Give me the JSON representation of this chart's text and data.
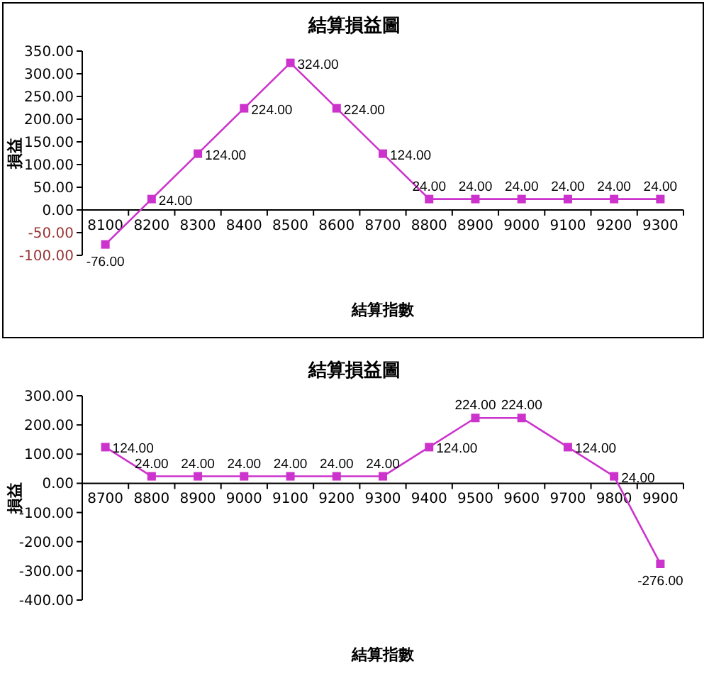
{
  "chart_data": [
    {
      "type": "line",
      "title": "結算損益圖",
      "xlabel": "結算指數",
      "ylabel": "損益",
      "categories": [
        "8100",
        "8200",
        "8300",
        "8400",
        "8500",
        "8600",
        "8700",
        "8800",
        "8900",
        "9000",
        "9100",
        "9200",
        "9300"
      ],
      "series": [
        {
          "color": "#cc33cc",
          "values": [
            -76,
            24,
            124,
            224,
            324,
            224,
            124,
            24,
            24,
            24,
            24,
            24,
            24
          ],
          "value_labels": [
            "-76.00",
            "24.00",
            "124.00",
            "224.00",
            "324.00",
            "224.00",
            "124.00",
            "24.00",
            "24.00",
            "24.00",
            "24.00",
            "24.00",
            "24.00"
          ]
        }
      ],
      "ylim": [
        -100,
        350
      ],
      "yticks": [
        {
          "value": -100,
          "label": "-100.00"
        },
        {
          "value": -50,
          "label": "-50.00"
        },
        {
          "value": 0,
          "label": "0.00"
        },
        {
          "value": 50,
          "label": "50.00"
        },
        {
          "value": 100,
          "label": "100.00"
        },
        {
          "value": 150,
          "label": "150.00"
        },
        {
          "value": 200,
          "label": "200.00"
        },
        {
          "value": 250,
          "label": "250.00"
        },
        {
          "value": 300,
          "label": "300.00"
        },
        {
          "value": 350,
          "label": "350.00"
        }
      ],
      "marker": "square",
      "grid": false
    },
    {
      "type": "line",
      "title": "結算損益圖",
      "xlabel": "結算指數",
      "ylabel": "損益",
      "categories": [
        "8700",
        "8800",
        "8900",
        "9000",
        "9100",
        "9200",
        "9300",
        "9400",
        "9500",
        "9600",
        "9700",
        "9800",
        "9900"
      ],
      "series": [
        {
          "color": "#cc33cc",
          "values": [
            124,
            24,
            24,
            24,
            24,
            24,
            24,
            124,
            224,
            224,
            124,
            24,
            -276
          ],
          "value_labels": [
            "124.00",
            "24.00",
            "24.00",
            "24.00",
            "24.00",
            "24.00",
            "24.00",
            "124.00",
            "224.00",
            "224.00",
            "124.00",
            "24.00",
            "-276.00"
          ]
        }
      ],
      "ylim": [
        -400,
        300
      ],
      "yticks": [
        {
          "value": -400,
          "label": "-400.00"
        },
        {
          "value": -300,
          "label": "-300.00"
        },
        {
          "value": -200,
          "label": "-200.00"
        },
        {
          "value": -100,
          "label": "-100.00"
        },
        {
          "value": 0,
          "label": "0.00"
        },
        {
          "value": 100,
          "label": "100.00"
        },
        {
          "value": 200,
          "label": "200.00"
        },
        {
          "value": 300,
          "label": "300.00"
        }
      ],
      "marker": "square",
      "grid": false
    }
  ]
}
